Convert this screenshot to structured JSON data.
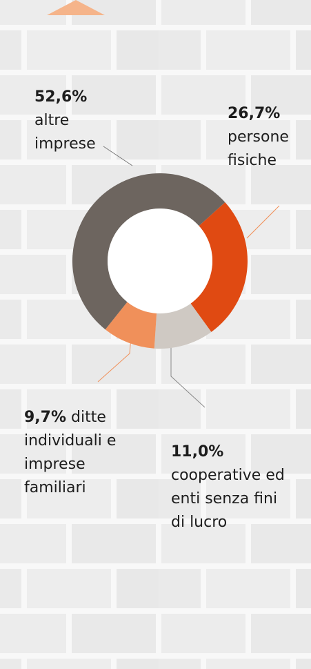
{
  "chart_data": {
    "type": "donut",
    "categories": [
      "persone fisiche",
      "cooperative ed enti senza fini di lucro",
      "ditte individuali e imprese familiari",
      "altre imprese"
    ],
    "values": [
      26.7,
      11.0,
      9.7,
      52.6
    ],
    "value_labels": [
      "26,7%",
      "11,0%",
      "9,7%",
      "52,6%"
    ],
    "colors": [
      "#e04a12",
      "#cfc9c3",
      "#f0905a",
      "#6d655f"
    ]
  }
}
